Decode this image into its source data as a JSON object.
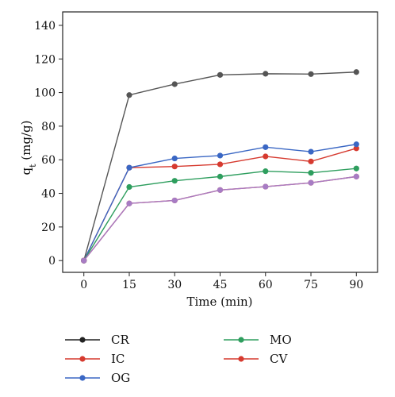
{
  "chart_data": {
    "type": "line",
    "x": [
      0,
      15,
      30,
      45,
      60,
      75,
      90
    ],
    "xlabel": "Time (min)",
    "ylabel_main": "q",
    "ylabel_sub": "t",
    "ylabel_unit": " (mg/g)",
    "xlim": [
      -7,
      97
    ],
    "ylim": [
      -7,
      148
    ],
    "xticks": [
      0,
      15,
      30,
      45,
      60,
      75,
      90
    ],
    "yticks": [
      0,
      20,
      40,
      60,
      80,
      100,
      120,
      140
    ],
    "grid": false,
    "legend_position": "bottom",
    "series": [
      {
        "name": "CR",
        "color": "#555555",
        "values": [
          0,
          98.5,
          105,
          110.5,
          111.2,
          111,
          112.2
        ]
      },
      {
        "name": "IC",
        "color": "#d63a2f",
        "values": [
          0,
          55.3,
          56,
          57.3,
          62,
          59,
          66.8
        ]
      },
      {
        "name": "OG",
        "color": "#3a67c4",
        "values": [
          0,
          55.3,
          60.8,
          62.5,
          67.5,
          64.8,
          69.2
        ]
      },
      {
        "name": "MO",
        "color": "#2e9e5e",
        "values": [
          0,
          43.8,
          47.5,
          50,
          53.2,
          52.2,
          54.8
        ]
      },
      {
        "name": "CV",
        "color": "#d63a2f",
        "values": [
          0,
          34,
          35.8,
          42,
          44,
          46.3,
          50
        ]
      },
      {
        "name": "",
        "color": "#a77cc4",
        "values": [
          0,
          34,
          35.8,
          42,
          44,
          46.3,
          50
        ]
      }
    ],
    "legend": [
      {
        "name": "CR",
        "color": "#222222"
      },
      {
        "name": "IC",
        "color": "#d63a2f"
      },
      {
        "name": "OG",
        "color": "#3a67c4"
      },
      {
        "name": "MO",
        "color": "#2e9e5e"
      },
      {
        "name": "CV",
        "color": "#d63a2f"
      }
    ]
  }
}
